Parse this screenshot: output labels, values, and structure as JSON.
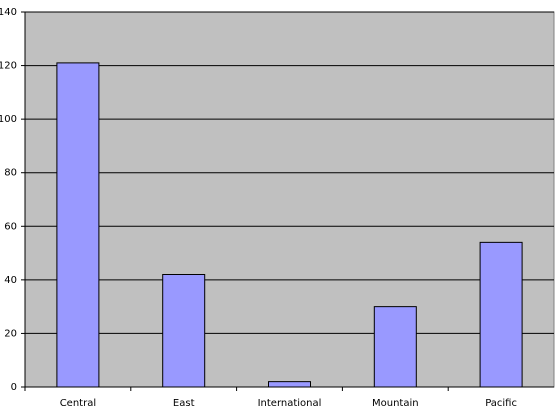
{
  "chart_data": {
    "type": "bar",
    "categories": [
      "Central",
      "East",
      "International",
      "Mountain",
      "Pacific"
    ],
    "values": [
      121,
      42,
      2,
      30,
      54
    ],
    "color": "#9999ff",
    "ylim": [
      0,
      140
    ],
    "yticks": [
      0,
      20,
      40,
      60,
      80,
      100,
      120,
      140
    ],
    "grid": true
  }
}
